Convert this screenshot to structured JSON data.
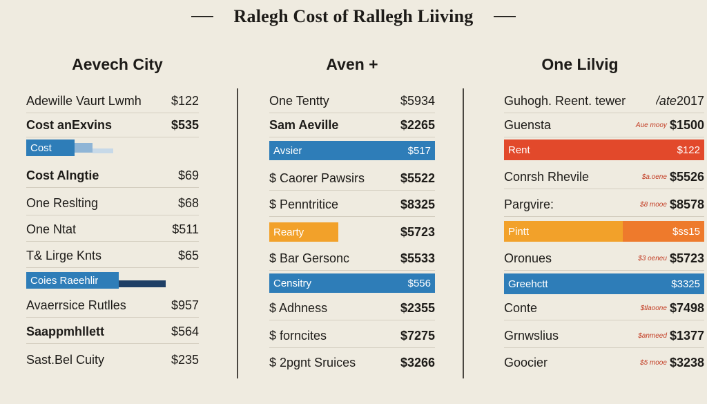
{
  "title": "Ralegh Cost of Rallegh Liiving",
  "col1": {
    "heading": "Aevech City",
    "rows": [
      {
        "label": "Adewille Vaurt Lwmh",
        "value": "$122"
      },
      {
        "label": "Cost anExvins",
        "value": "$535"
      },
      {
        "label": "Cost",
        "value": ""
      },
      {
        "label": "Cost Alngtie",
        "value": "$69"
      },
      {
        "label": "One Reslting",
        "value": "$68"
      },
      {
        "label": "One Ntat",
        "value": "$511"
      },
      {
        "label": "T& Lirge Knts",
        "value": "$65"
      },
      {
        "label": "Coies Raeehlir",
        "value": ""
      },
      {
        "label": "Avaerrsice Rutlles",
        "value": "$957"
      },
      {
        "label": "Saappmhllett",
        "value": "$564"
      },
      {
        "label": "Sast.Bel Cuity",
        "value": "$235"
      }
    ]
  },
  "col2": {
    "heading": "Aven +",
    "rows": [
      {
        "label": "One Tentty",
        "value": "$5934"
      },
      {
        "label": "Sam Aeville",
        "value": "$2265"
      },
      {
        "label": "Avsier",
        "value": "$517"
      },
      {
        "label": "$ Caorer Pawsirs",
        "value": "$5522"
      },
      {
        "label": "$ Penntritice",
        "value": "$8325"
      },
      {
        "label": "Rearty",
        "value": "$5723"
      },
      {
        "label": "$ Bar Gersonc",
        "value": "$5533"
      },
      {
        "label": "Censitry",
        "value": "$556"
      },
      {
        "label": "$ Adhness",
        "value": "$2355"
      },
      {
        "label": "$ forncites",
        "value": "$7275"
      },
      {
        "label": "$ 2pgnt Sruices",
        "value": "$3266"
      }
    ]
  },
  "col3": {
    "heading": "One Lilvig",
    "rows": [
      {
        "label": "Guhogh. Reent. tewer",
        "note": "/ate",
        "value": "2017"
      },
      {
        "label": "Guensta",
        "note": "Aue mooy",
        "value": "$1500"
      },
      {
        "label": "Rent",
        "note": "",
        "value": "$122"
      },
      {
        "label": "Conrsh Rhevile",
        "note": "$a.oene",
        "value": "$5526"
      },
      {
        "label": "Pargvire:",
        "note": "$8 mooe",
        "value": "$8578"
      },
      {
        "label": "Pintt",
        "note": "",
        "value": "$ss15"
      },
      {
        "label": "Oronues",
        "note": "$3 oeneu",
        "value": "$5723"
      },
      {
        "label": "Greehctt",
        "note": "",
        "value": "$3325"
      },
      {
        "label": "Conte",
        "note": "$tlaoone",
        "value": "$7498"
      },
      {
        "label": "Grnwslius",
        "note": "$anmeed",
        "value": "$1377"
      },
      {
        "label": "Goocier",
        "note": "$5 mooe",
        "value": "$3238"
      }
    ]
  },
  "colors": {
    "blue": "#2e7db8",
    "red": "#e2492b",
    "orange": "#f2a12a",
    "background": "#efebe0"
  }
}
